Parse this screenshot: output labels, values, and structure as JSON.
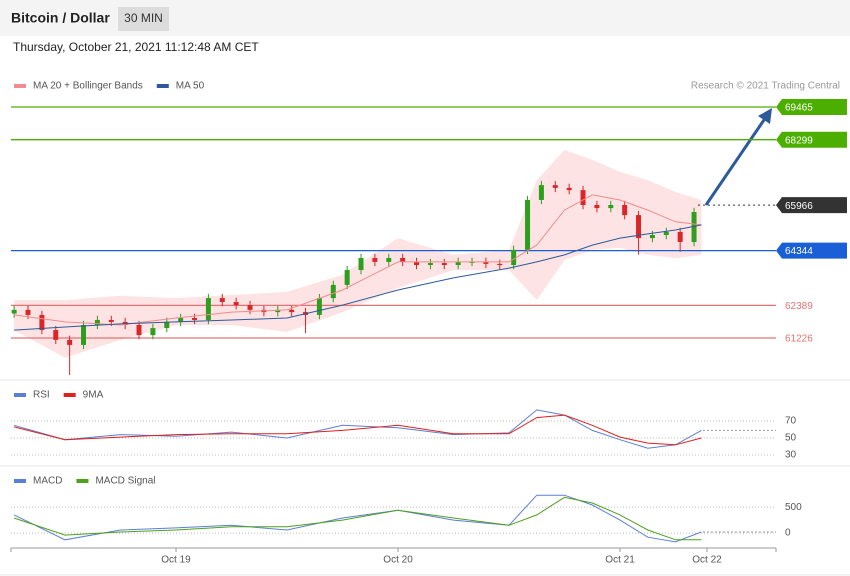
{
  "header": {
    "title": "Bitcoin / Dollar",
    "timeframe": "30 MIN"
  },
  "timestamp": "Thursday, October 21, 2021 11:12:48 AM CET",
  "copyright": "Research © 2021 Trading Central",
  "chart_data": [
    {
      "type": "candlestick",
      "x": [
        6.5,
        8,
        9.5,
        11,
        12.5,
        14,
        15.5,
        17,
        18.5,
        20,
        21.5,
        23,
        24.5,
        26,
        27.5,
        29,
        30.5,
        32,
        33.5,
        35,
        36.5,
        38,
        39.5,
        41,
        42.5,
        44,
        45.5,
        47,
        48.5,
        50,
        51.5,
        53,
        54.5,
        56,
        57.5,
        59,
        60.5,
        62,
        63.5,
        65,
        66.5,
        68,
        69.5,
        71,
        72.5,
        74,
        75.5,
        77,
        78.5,
        80
      ],
      "open": [
        62100,
        62230,
        62050,
        61510,
        61160,
        60980,
        61690,
        61870,
        61800,
        61690,
        61330,
        61580,
        61800,
        61940,
        61870,
        62650,
        62510,
        62400,
        62230,
        62150,
        62230,
        62150,
        62050,
        62650,
        63120,
        63650,
        64080,
        63940,
        64080,
        63940,
        63830,
        63900,
        63830,
        63940,
        63940,
        63870,
        63830,
        64370,
        66150,
        66680,
        66580,
        66500,
        65970,
        65860,
        65970,
        65610,
        64790,
        64900,
        65010,
        64650
      ],
      "high": [
        62380,
        62380,
        62200,
        61660,
        61310,
        61840,
        62020,
        62020,
        61950,
        61840,
        61730,
        61950,
        62090,
        62090,
        62800,
        62800,
        62660,
        62550,
        62380,
        62380,
        62380,
        62300,
        62800,
        63270,
        63800,
        64230,
        64230,
        64230,
        64230,
        64090,
        64050,
        64050,
        64090,
        64090,
        64090,
        64020,
        64520,
        66300,
        66830,
        66830,
        66730,
        66650,
        66120,
        66120,
        66120,
        65760,
        65050,
        65160,
        65160,
        65870
      ],
      "low": [
        61950,
        61900,
        61360,
        61010,
        59910,
        60830,
        61540,
        61650,
        61540,
        61180,
        61180,
        61430,
        61650,
        61720,
        61720,
        62360,
        62250,
        62080,
        62000,
        62000,
        62000,
        61400,
        61900,
        62500,
        62970,
        63500,
        63790,
        63790,
        63790,
        63680,
        63680,
        63680,
        63680,
        63790,
        63720,
        63680,
        63680,
        64220,
        66000,
        66430,
        66350,
        65820,
        65710,
        65710,
        65460,
        64200,
        64640,
        64750,
        64300,
        64500
      ],
      "close": [
        62230,
        62050,
        61510,
        61160,
        60980,
        61690,
        61870,
        61800,
        61690,
        61330,
        61580,
        61800,
        61940,
        61870,
        62650,
        62510,
        62400,
        62230,
        62150,
        62230,
        62150,
        62050,
        62650,
        63120,
        63650,
        64080,
        63940,
        64080,
        63940,
        63830,
        63900,
        63830,
        63940,
        63940,
        63870,
        63830,
        64370,
        66150,
        66680,
        66580,
        66500,
        65970,
        65860,
        65970,
        65610,
        64790,
        64900,
        65010,
        64650,
        65720
      ],
      "up_color": "#2e9e1f",
      "down_color": "#d9262a",
      "xlim": [
        6.16,
        88.86
      ],
      "ylim": [
        59800,
        70785
      ],
      "overlays": {
        "x": [
          6.5,
          12,
          18,
          24,
          30,
          36,
          42,
          48,
          54,
          60,
          63,
          66,
          69,
          72,
          75,
          78,
          80.8
        ],
        "series": [
          {
            "name": "MA 20 + Bollinger Bands",
            "color": "#f28b8b",
            "band_color": "#fde3e3",
            "values": [
              62050,
              61800,
              61690,
              61940,
              62150,
              62230,
              62940,
              63940,
              63940,
              63940,
              64540,
              65790,
              66330,
              66150,
              65790,
              65370,
              65260
            ],
            "upper": [
              62580,
              62580,
              62730,
              62650,
              62760,
              62870,
              63480,
              64790,
              64190,
              64370,
              66860,
              67930,
              67580,
              67150,
              66860,
              66430,
              66150
            ],
            "lower": [
              61510,
              60520,
              61160,
              61690,
              61690,
              61440,
              62150,
              63010,
              63650,
              63650,
              62580,
              64010,
              64370,
              64440,
              64190,
              64080,
              64190
            ]
          },
          {
            "name": "MA 50",
            "color": "#2d5a9a",
            "values": [
              61510,
              61620,
              61730,
              61800,
              61870,
              61940,
              62400,
              62940,
              63370,
              63720,
              63940,
              64190,
              64540,
              64790,
              64940,
              65080,
              65260
            ]
          }
        ]
      },
      "levels": [
        {
          "value": 69465,
          "color": "#4caf00",
          "style": "solid",
          "boxed": true
        },
        {
          "value": 68299,
          "color": "#4caf00",
          "style": "solid",
          "boxed": true
        },
        {
          "value": 65966,
          "color": "#333333",
          "style": "dotted",
          "boxed": true
        },
        {
          "value": 64344,
          "color": "#1a5fd6",
          "style": "solid",
          "boxed": true
        },
        {
          "value": 62389,
          "color": "#e57373",
          "style": "solid",
          "boxed": false
        },
        {
          "value": 61226,
          "color": "#e57373",
          "style": "solid",
          "boxed": false
        }
      ]
    },
    {
      "type": "line",
      "x": [
        6.5,
        12,
        18,
        24,
        30,
        36,
        42,
        48,
        54,
        60,
        63,
        66,
        69,
        72,
        75,
        78,
        80.8
      ],
      "series": [
        {
          "name": "RSI",
          "color": "#5b7fd6",
          "values": [
            65,
            48,
            54,
            52,
            57,
            50,
            65,
            62,
            54,
            56,
            83,
            77,
            59,
            48,
            38,
            42,
            59
          ]
        },
        {
          "name": "9MA",
          "color": "#e0201b",
          "values": [
            63,
            48,
            51,
            54,
            55,
            55,
            59,
            65,
            55,
            55,
            74,
            77,
            65,
            51,
            44,
            42,
            50
          ]
        }
      ],
      "xlim": [
        6.16,
        88.86
      ],
      "ylim": [
        20,
        95
      ],
      "yticks": [
        70,
        50,
        30
      ],
      "grid": true
    },
    {
      "type": "line",
      "x": [
        6.5,
        12,
        18,
        24,
        30,
        36,
        42,
        48,
        54,
        60,
        63,
        66,
        69,
        72,
        75,
        78,
        80.8
      ],
      "series": [
        {
          "name": "MACD",
          "color": "#5b7fd6",
          "values": [
            350,
            -130,
            60,
            100,
            150,
            60,
            290,
            440,
            250,
            150,
            730,
            730,
            540,
            250,
            -80,
            -170,
            20
          ]
        },
        {
          "name": "MACD Signal",
          "color": "#4fa01e",
          "values": [
            290,
            -40,
            20,
            60,
            120,
            120,
            250,
            440,
            290,
            150,
            350,
            690,
            580,
            350,
            60,
            -130,
            -130
          ]
        }
      ],
      "xlim": [
        6.16,
        88.86
      ],
      "ylim": [
        -230,
        830
      ],
      "yticks": [
        500,
        0
      ],
      "grid": true,
      "xticks": [
        {
          "value": 24,
          "label": "Oct 19"
        },
        {
          "value": 48,
          "label": "Oct 20"
        },
        {
          "value": 72,
          "label": "Oct 21"
        },
        {
          "value": 81.4,
          "label": "Oct 22"
        }
      ]
    }
  ]
}
